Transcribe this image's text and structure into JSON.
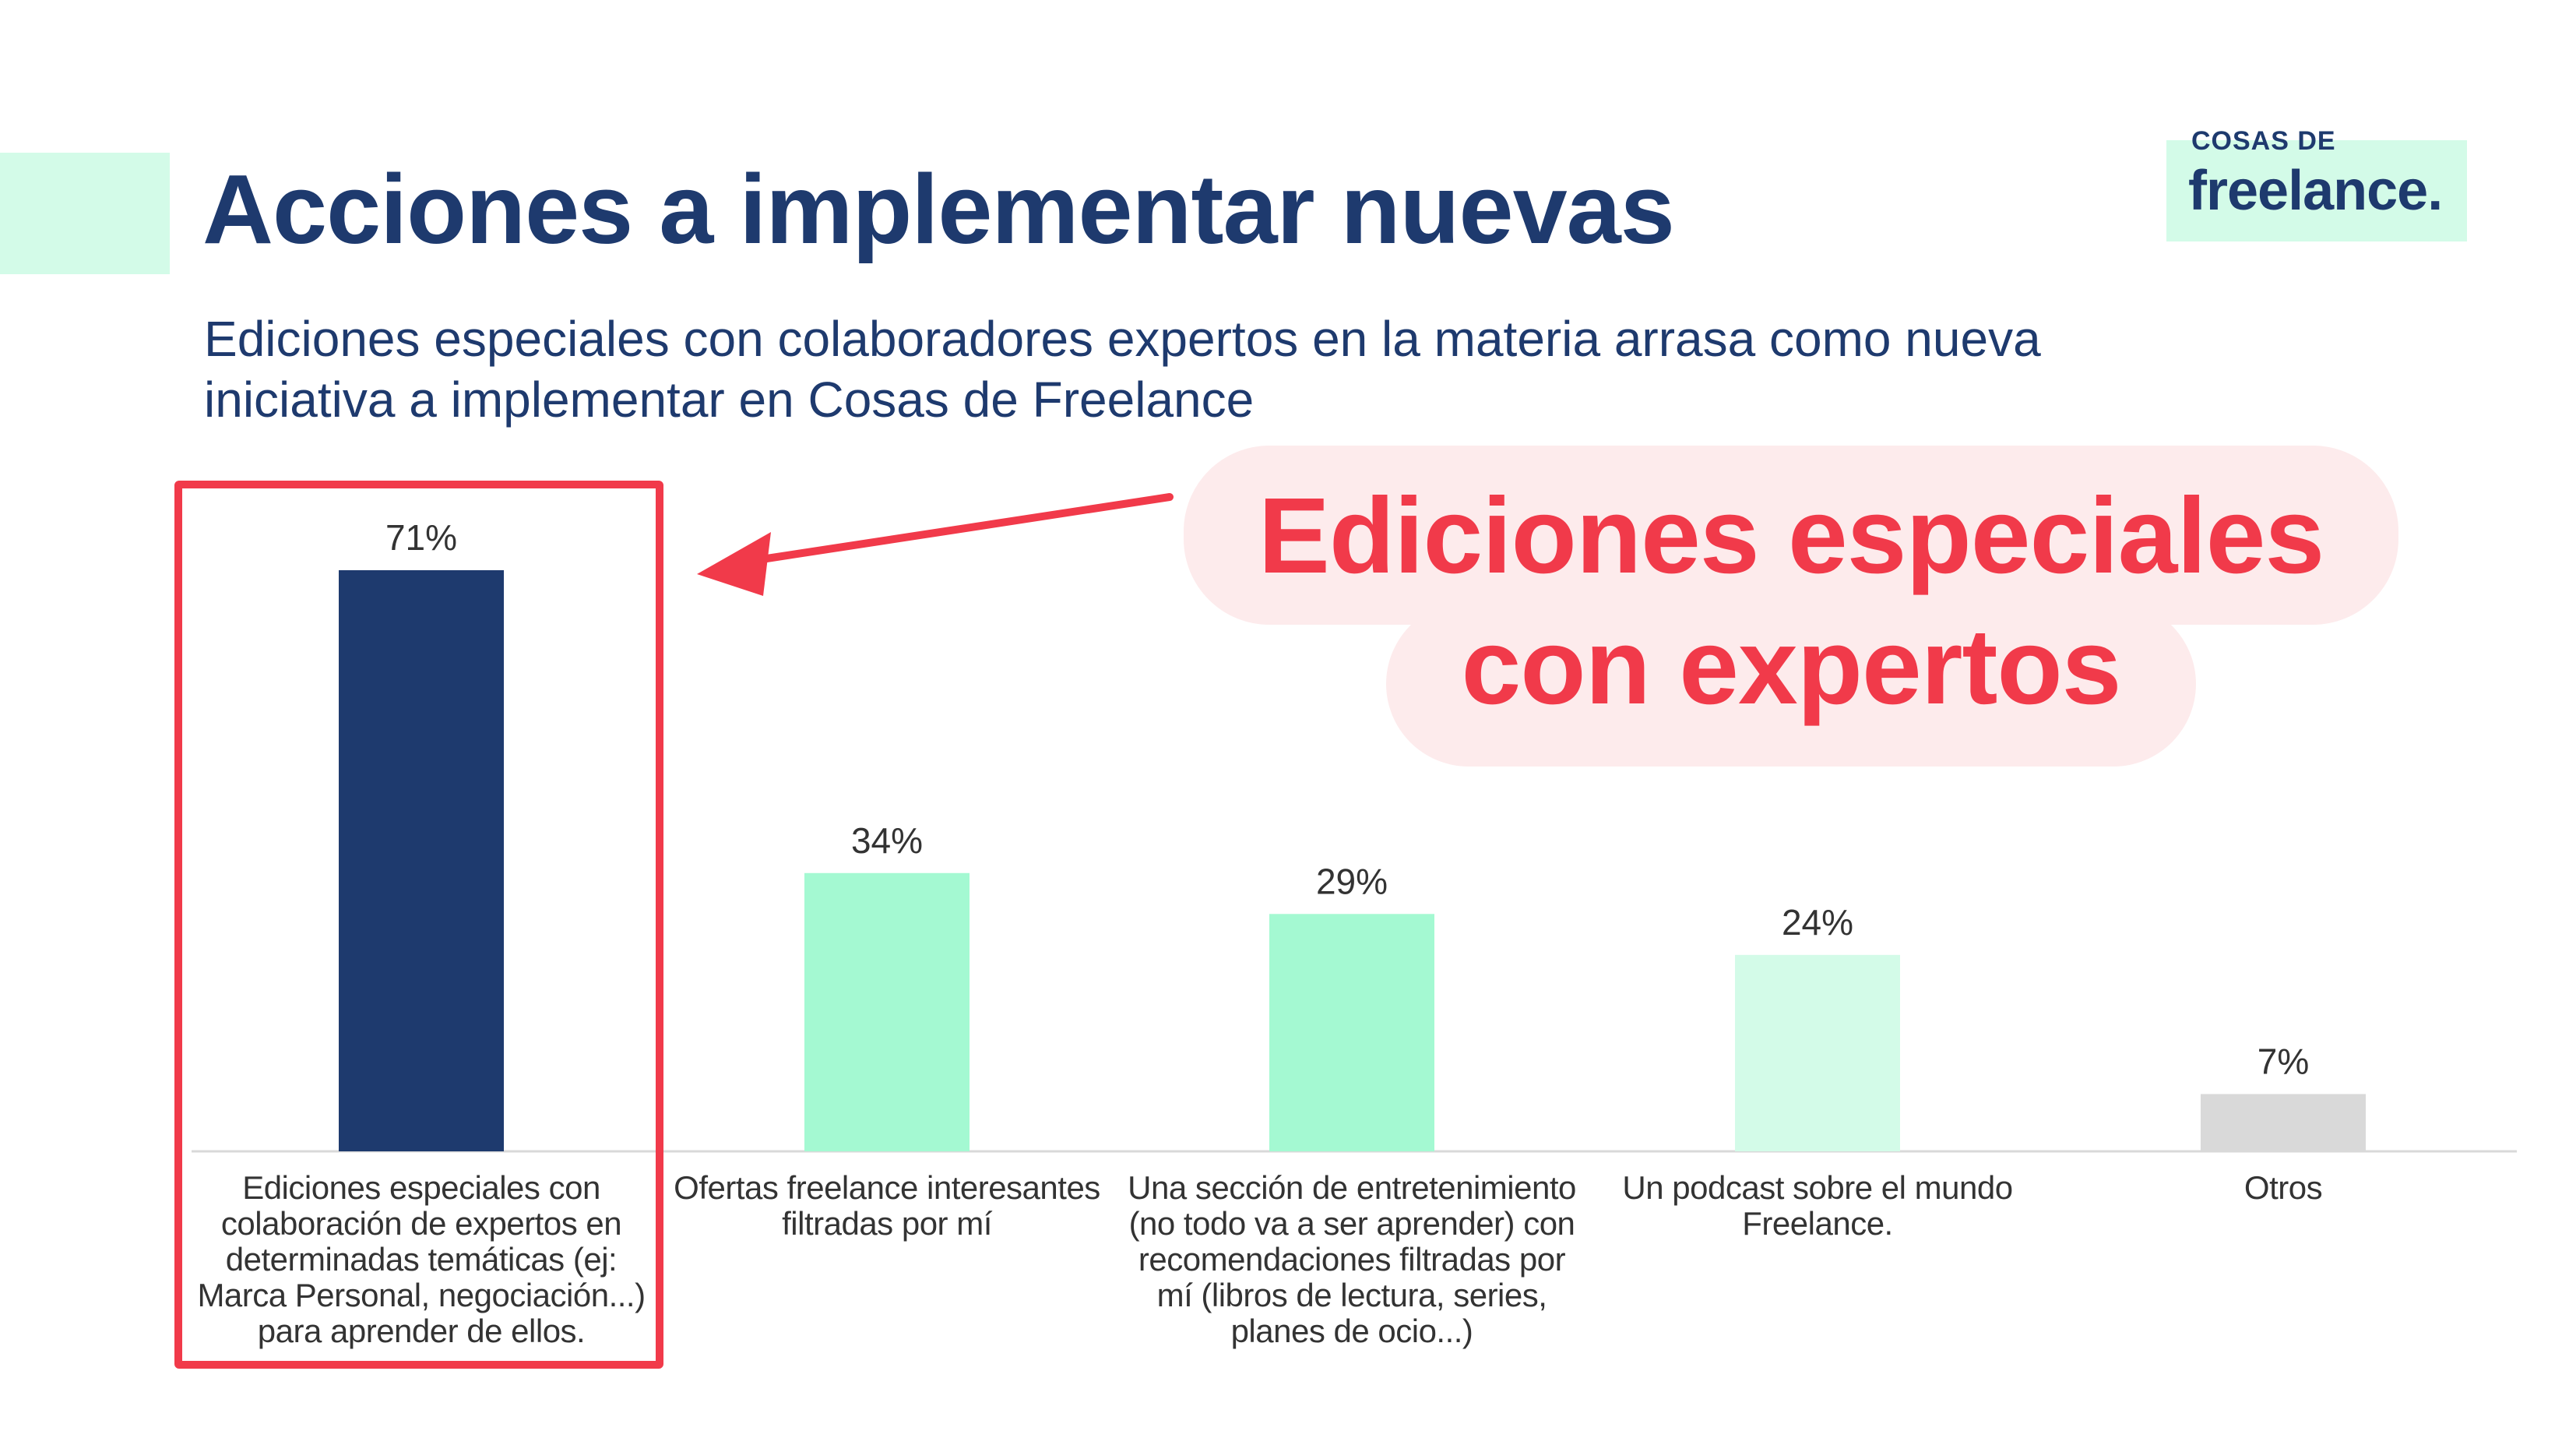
{
  "header": {
    "title": "Acciones a implementar nuevas",
    "subtitle": "Ediciones especiales con colaboradores expertos en la materia arrasa como nueva iniciativa a implementar en Cosas de Freelance"
  },
  "logo": {
    "top": "COSAS DE",
    "main": "freelance."
  },
  "callout": {
    "text": "Ediciones especiales con expertos",
    "color": "#f13a4a"
  },
  "colors": {
    "navy": "#1e3a6e",
    "mint": "#a4f9d2",
    "mint_light": "#d3fbe8",
    "gray": "#d9d9d9",
    "highlight": "#f13a4a"
  },
  "chart_data": {
    "type": "bar",
    "categories": [
      "Ediciones especiales con colaboración de expertos en determinadas temáticas (ej: Marca Personal, negociación...) para aprender de ellos.",
      "Ofertas freelance interesantes filtradas por mí",
      "Una sección de entretenimiento (no todo va a ser aprender) con recomendaciones filtradas por mí (libros de lectura, series, planes de ocio...)",
      "Un podcast sobre el mundo Freelance.",
      "Otros"
    ],
    "values": [
      71,
      34,
      29,
      24,
      7
    ],
    "value_labels": [
      "71%",
      "34%",
      "29%",
      "24%",
      "7%"
    ],
    "bar_colors": [
      "#1e3a6e",
      "#a4f9d2",
      "#a4f9d2",
      "#d3fbe8",
      "#d9d9d9"
    ],
    "ylim": [
      0,
      71
    ],
    "grid": false,
    "highlighted_category": 0,
    "title": "",
    "xlabel": "",
    "ylabel": ""
  }
}
